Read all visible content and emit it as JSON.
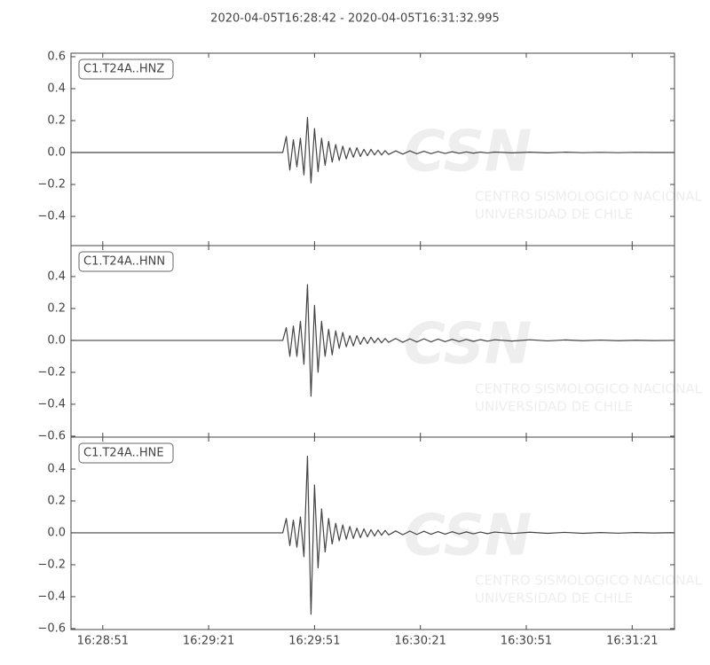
{
  "title": "2020-04-05T16:28:42  -  2020-04-05T16:31:32.995",
  "watermark": {
    "logo": "CSN",
    "line1": "CENTRO SISMOLOGICO NACIONAL",
    "line2": "UNIVERSIDAD DE CHILE"
  },
  "chart_data": [
    {
      "type": "line",
      "label": "C1.T24A..HNZ",
      "color": "#444444",
      "xlim": [
        0,
        170.995
      ],
      "ylim": [
        -0.583,
        0.622
      ],
      "yticks": [
        {
          "value": -0.4,
          "label": "−0.4"
        },
        {
          "value": -0.2,
          "label": "−0.2"
        },
        {
          "value": 0,
          "label": "0.0"
        },
        {
          "value": 0.2,
          "label": "0.2"
        },
        {
          "value": 0.4,
          "label": "0.4"
        },
        {
          "value": 0.6,
          "label": "0.6"
        }
      ],
      "x": [
        0,
        60,
        61,
        62,
        63,
        64,
        65,
        66,
        67,
        68,
        69,
        70,
        71,
        72,
        73,
        74,
        75,
        76,
        77,
        78,
        79,
        80,
        81,
        82,
        83,
        84,
        85,
        86,
        87,
        88,
        89,
        90,
        92,
        94,
        96,
        98,
        100,
        102,
        104,
        106,
        108,
        110,
        112,
        114,
        116,
        118,
        120,
        125,
        130,
        135,
        140,
        145,
        150,
        155,
        160,
        165,
        170,
        170.995
      ],
      "values": [
        0,
        0,
        0.1,
        -0.11,
        0.08,
        -0.09,
        0.09,
        -0.14,
        0.22,
        -0.19,
        0.15,
        -0.12,
        0.09,
        -0.08,
        0.07,
        -0.06,
        0.05,
        -0.05,
        0.04,
        -0.04,
        0.03,
        -0.03,
        0.03,
        -0.025,
        0.02,
        -0.02,
        0.02,
        -0.015,
        0.015,
        -0.015,
        0.012,
        -0.012,
        0.01,
        -0.01,
        0.01,
        -0.008,
        0.008,
        -0.007,
        0.006,
        -0.006,
        0.005,
        -0.005,
        0.004,
        -0.004,
        0.003,
        -0.003,
        0.003,
        -0.002,
        0.002,
        -0.002,
        0.002,
        -0.001,
        0.001,
        -0.001,
        0.001,
        0,
        0,
        0
      ]
    },
    {
      "type": "line",
      "label": "C1.T24A..HNN",
      "color": "#444444",
      "xlim": [
        0,
        170.995
      ],
      "ylim": [
        -0.606,
        0.594
      ],
      "yticks": [
        {
          "value": -0.6,
          "label": "−0.6"
        },
        {
          "value": -0.4,
          "label": "−0.4"
        },
        {
          "value": -0.2,
          "label": "−0.2"
        },
        {
          "value": 0,
          "label": "0.0"
        },
        {
          "value": 0.2,
          "label": "0.2"
        },
        {
          "value": 0.4,
          "label": "0.4"
        }
      ],
      "x": [
        0,
        60,
        61,
        62,
        63,
        64,
        65,
        66,
        67,
        68,
        69,
        70,
        71,
        72,
        73,
        74,
        75,
        76,
        77,
        78,
        79,
        80,
        81,
        82,
        83,
        84,
        85,
        86,
        87,
        88,
        89,
        90,
        92,
        94,
        96,
        98,
        100,
        102,
        104,
        106,
        108,
        110,
        112,
        114,
        116,
        118,
        120,
        125,
        130,
        135,
        140,
        145,
        150,
        155,
        160,
        165,
        170,
        170.995
      ],
      "values": [
        0,
        0,
        0.08,
        -0.1,
        0.09,
        -0.1,
        0.12,
        -0.15,
        0.35,
        -0.35,
        0.22,
        -0.2,
        0.12,
        -0.1,
        0.07,
        -0.09,
        0.06,
        -0.05,
        0.05,
        -0.04,
        0.03,
        -0.035,
        0.03,
        -0.025,
        0.02,
        -0.02,
        0.02,
        -0.015,
        0.015,
        -0.015,
        0.012,
        -0.012,
        0.012,
        -0.012,
        0.01,
        -0.01,
        0.01,
        -0.009,
        0.008,
        -0.008,
        0.007,
        -0.007,
        0.006,
        -0.006,
        0.005,
        -0.005,
        0.004,
        -0.004,
        0.004,
        -0.003,
        0.003,
        -0.002,
        0.002,
        -0.002,
        0.001,
        -0.001,
        0,
        0
      ]
    },
    {
      "type": "line",
      "label": "C1.T24A..HNE",
      "color": "#444444",
      "xlim": [
        0,
        170.995
      ],
      "ylim": [
        -0.606,
        0.6
      ],
      "yticks": [
        {
          "value": -0.6,
          "label": "−0.6"
        },
        {
          "value": -0.4,
          "label": "−0.4"
        },
        {
          "value": -0.2,
          "label": "−0.2"
        },
        {
          "value": 0,
          "label": "0.0"
        },
        {
          "value": 0.2,
          "label": "0.2"
        },
        {
          "value": 0.4,
          "label": "0.4"
        }
      ],
      "xticks": [
        {
          "value": 9,
          "label": "16:28:51"
        },
        {
          "value": 39,
          "label": "16:29:21"
        },
        {
          "value": 69,
          "label": "16:29:51"
        },
        {
          "value": 99,
          "label": "16:30:21"
        },
        {
          "value": 129,
          "label": "16:30:51"
        },
        {
          "value": 159,
          "label": "16:31:21"
        }
      ],
      "x": [
        0,
        60,
        61,
        62,
        63,
        64,
        65,
        66,
        67,
        68,
        69,
        70,
        71,
        72,
        73,
        74,
        75,
        76,
        77,
        78,
        79,
        80,
        81,
        82,
        83,
        84,
        85,
        86,
        87,
        88,
        89,
        90,
        92,
        94,
        96,
        98,
        100,
        102,
        104,
        106,
        108,
        110,
        112,
        114,
        116,
        118,
        120,
        125,
        130,
        135,
        140,
        145,
        150,
        155,
        160,
        165,
        170,
        170.995
      ],
      "values": [
        0,
        0,
        0.09,
        -0.08,
        0.08,
        -0.09,
        0.1,
        -0.15,
        0.48,
        -0.51,
        0.3,
        -0.22,
        0.15,
        -0.12,
        0.09,
        -0.07,
        0.06,
        -0.05,
        0.05,
        -0.04,
        0.04,
        -0.035,
        0.03,
        -0.03,
        0.025,
        -0.025,
        0.02,
        -0.02,
        0.018,
        -0.015,
        0.015,
        -0.013,
        0.012,
        -0.012,
        0.011,
        -0.01,
        0.01,
        -0.009,
        0.008,
        -0.008,
        0.007,
        -0.007,
        0.006,
        -0.006,
        0.005,
        -0.005,
        0.005,
        -0.004,
        0.004,
        -0.003,
        0.003,
        -0.003,
        0.002,
        -0.002,
        0.002,
        -0.001,
        0.001,
        0
      ]
    }
  ]
}
